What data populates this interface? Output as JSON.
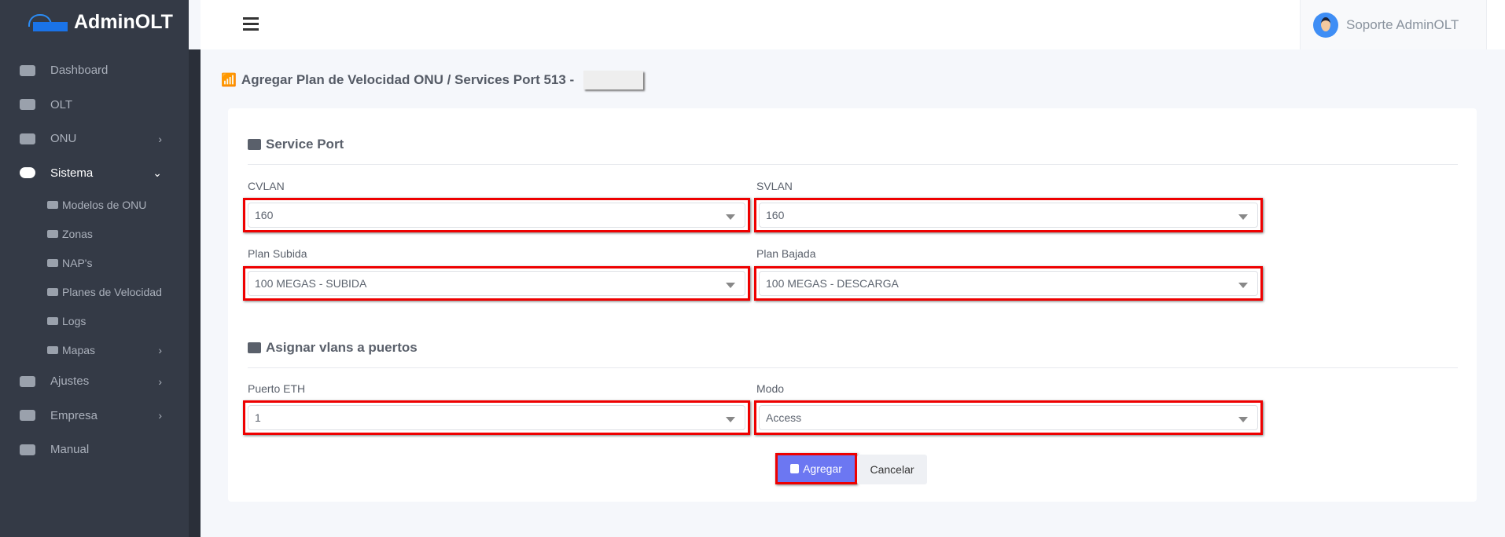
{
  "brand": "AdminOLT",
  "sidebar": {
    "items": [
      {
        "label": "Dashboard",
        "icon": "tachometer-icon"
      },
      {
        "label": "OLT",
        "icon": "server-icon"
      },
      {
        "label": "ONU",
        "icon": "hdd-icon"
      },
      {
        "label": "Sistema",
        "icon": "cloud-icon"
      },
      {
        "label": "Ajustes",
        "icon": "tools-icon"
      },
      {
        "label": "Empresa",
        "icon": "building-icon"
      },
      {
        "label": "Manual",
        "icon": "book-icon"
      }
    ],
    "subitems": [
      {
        "label": "Modelos de ONU"
      },
      {
        "label": "Zonas"
      },
      {
        "label": "NAP's"
      },
      {
        "label": "Planes de Velocidad"
      },
      {
        "label": "Logs"
      },
      {
        "label": "Mapas"
      }
    ]
  },
  "header": {
    "user": "Soporte AdminOLT"
  },
  "page": {
    "title": "Agregar Plan de Velocidad ONU / Services Port 513 -"
  },
  "form": {
    "section1": "Service Port",
    "cvlan": {
      "label": "CVLAN",
      "value": "160"
    },
    "svlan": {
      "label": "SVLAN",
      "value": "160"
    },
    "plan_subida": {
      "label": "Plan Subida",
      "value": "100 MEGAS - SUBIDA"
    },
    "plan_bajada": {
      "label": "Plan Bajada",
      "value": "100 MEGAS - DESCARGA"
    },
    "section2": "Asignar vlans a puertos",
    "puerto_eth": {
      "label": "Puerto ETH",
      "value": "1"
    },
    "modo": {
      "label": "Modo",
      "value": "Access"
    },
    "submit": "Agregar",
    "cancel": "Cancelar"
  },
  "colors": {
    "sidebar": "#343a46",
    "primary": "#6c77f2",
    "highlight": "#ee0000"
  }
}
